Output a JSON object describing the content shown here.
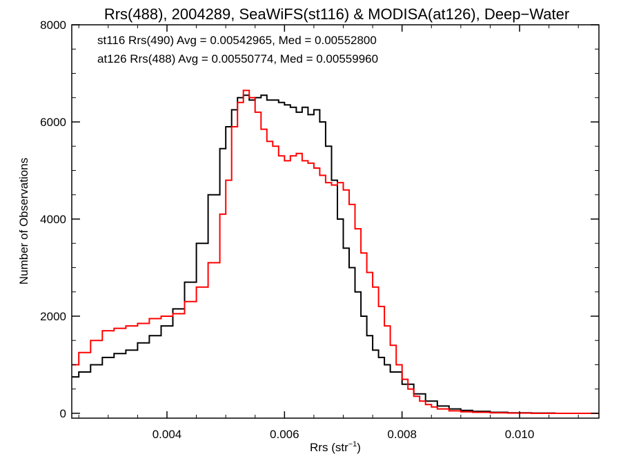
{
  "chart_data": {
    "type": "line",
    "step": true,
    "title": "Rrs(488), 2004289, SeaWiFS(st116) & MODISA(at126), Deep−Water",
    "xlabel_main": "Rrs (str",
    "xlabel_sup": "−1",
    "xlabel_close": ")",
    "ylabel": "Number of Observations",
    "xlim": [
      0.00238,
      0.01135
    ],
    "ylim": [
      -100,
      8000
    ],
    "xticks": [
      0.004,
      0.006,
      0.008,
      0.01
    ],
    "xtick_labels": [
      "0.004",
      "0.006",
      "0.008",
      "0.010"
    ],
    "yticks": [
      0,
      2000,
      4000,
      6000,
      8000
    ],
    "ytick_labels": [
      "0",
      "2000",
      "4000",
      "6000",
      "8000"
    ],
    "grid": false,
    "legend_position": "top-left",
    "series": [
      {
        "name": "st116 Rrs(490) Avg = 0.00542965, Med = 0.00552800",
        "color": "#000000",
        "x": [
          0.00238,
          0.0025,
          0.0027,
          0.0029,
          0.0031,
          0.0033,
          0.0035,
          0.0037,
          0.0039,
          0.0041,
          0.0043,
          0.0045,
          0.0047,
          0.0049,
          0.005,
          0.0051,
          0.0052,
          0.0053,
          0.0054,
          0.0055,
          0.0056,
          0.0057,
          0.0058,
          0.0059,
          0.006,
          0.0061,
          0.0062,
          0.0063,
          0.0064,
          0.0065,
          0.0066,
          0.0067,
          0.0068,
          0.0069,
          0.007,
          0.0071,
          0.0072,
          0.0073,
          0.0074,
          0.0075,
          0.0076,
          0.0077,
          0.0078,
          0.008,
          0.0082,
          0.0084,
          0.0086,
          0.0088,
          0.009,
          0.0092,
          0.0095,
          0.0098,
          0.0102,
          0.0106,
          0.011,
          0.01135
        ],
        "values": [
          750,
          850,
          1000,
          1150,
          1230,
          1300,
          1450,
          1600,
          1800,
          2150,
          2700,
          3500,
          4500,
          5450,
          5900,
          6250,
          6500,
          6550,
          6450,
          6500,
          6550,
          6450,
          6450,
          6400,
          6350,
          6300,
          6200,
          6300,
          6150,
          6250,
          6000,
          5500,
          4800,
          4000,
          3400,
          3000,
          2500,
          2000,
          1600,
          1300,
          1150,
          1000,
          850,
          600,
          400,
          250,
          150,
          90,
          60,
          40,
          20,
          10,
          5,
          0,
          0,
          0
        ]
      },
      {
        "name": "at126 Rrs(488) Avg = 0.00550774, Med = 0.00559960",
        "color": "#ff0000",
        "x": [
          0.00238,
          0.0025,
          0.0027,
          0.0029,
          0.0031,
          0.0033,
          0.0035,
          0.0037,
          0.0039,
          0.0041,
          0.0043,
          0.0045,
          0.0047,
          0.0049,
          0.005,
          0.0051,
          0.0052,
          0.0053,
          0.0054,
          0.0055,
          0.0056,
          0.0057,
          0.0058,
          0.0059,
          0.006,
          0.0061,
          0.0062,
          0.0063,
          0.0064,
          0.0065,
          0.0066,
          0.0067,
          0.0068,
          0.0069,
          0.007,
          0.0071,
          0.0072,
          0.0073,
          0.0074,
          0.0075,
          0.0076,
          0.0077,
          0.0078,
          0.0079,
          0.008,
          0.0081,
          0.0082,
          0.0083,
          0.0084,
          0.0085,
          0.0086,
          0.0088,
          0.009,
          0.0092,
          0.0095,
          0.0098,
          0.0102,
          0.0106,
          0.011,
          0.01135
        ],
        "values": [
          1000,
          1250,
          1500,
          1700,
          1750,
          1800,
          1850,
          1950,
          2000,
          2050,
          2300,
          2600,
          3100,
          4100,
          4800,
          5900,
          6400,
          6650,
          6500,
          6200,
          5850,
          5600,
          5500,
          5300,
          5200,
          5300,
          5350,
          5200,
          5150,
          5050,
          4900,
          4750,
          4700,
          4750,
          4600,
          4300,
          3800,
          3300,
          2900,
          2600,
          2200,
          1800,
          1400,
          1000,
          700,
          500,
          350,
          250,
          180,
          130,
          90,
          50,
          30,
          20,
          10,
          5,
          0,
          0,
          0,
          0
        ]
      }
    ]
  }
}
